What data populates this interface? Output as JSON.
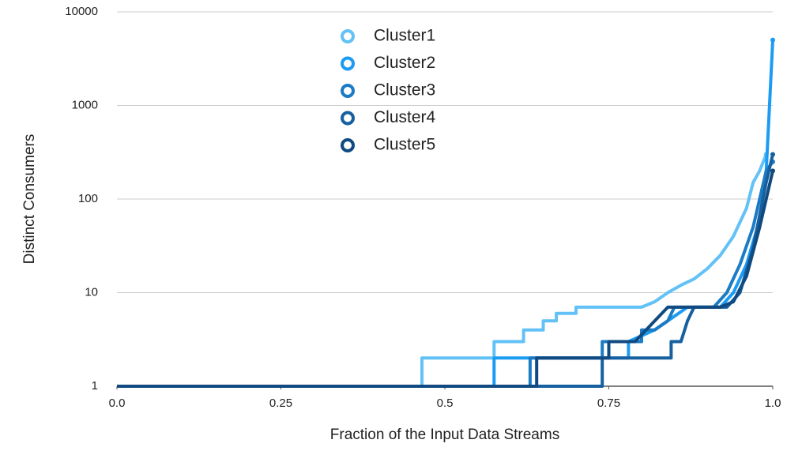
{
  "chart_data": {
    "type": "line",
    "log_y": true,
    "grid": true,
    "legend": "top",
    "x_label": "Fraction of the Input Data Streams",
    "y_label": "Distinct Consumers",
    "xlim": [
      0,
      1
    ],
    "xticks": [
      {
        "value": 0,
        "label": "0.0"
      },
      0.25,
      0.5,
      0.75,
      {
        "value": 1,
        "label": "1.0"
      }
    ],
    "ylim": [
      1,
      10000
    ],
    "yticks": [
      1,
      10,
      100,
      1000,
      10000
    ],
    "series": [
      {
        "name": "Cluster1",
        "color": "#62c1f6",
        "x": [
          0,
          0.465,
          0.465,
          0.575,
          0.575,
          0.62,
          0.62,
          0.65,
          0.65,
          0.67,
          0.67,
          0.7,
          0.7,
          0.8,
          0.82,
          0.84,
          0.86,
          0.88,
          0.9,
          0.92,
          0.94,
          0.96,
          0.97,
          0.98,
          0.99
        ],
        "values": [
          1,
          1,
          2,
          2,
          3,
          3,
          4,
          4,
          5,
          5,
          6,
          6,
          7,
          7,
          8,
          10,
          12,
          14,
          18,
          25,
          40,
          80,
          150,
          200,
          300
        ]
      },
      {
        "name": "Cluster2",
        "color": "#1b9cf2",
        "x": [
          0,
          0.575,
          0.575,
          0.78,
          0.78,
          0.82,
          0.84,
          0.87,
          0.92,
          0.94,
          0.96,
          0.98,
          0.99,
          0.995,
          1.0
        ],
        "values": [
          1,
          1,
          2,
          2,
          3,
          4,
          5,
          7,
          7,
          10,
          20,
          60,
          200,
          1000,
          5000
        ]
      },
      {
        "name": "Cluster3",
        "color": "#1b7bc4",
        "x": [
          0,
          0.63,
          0.63,
          0.74,
          0.74,
          0.8,
          0.8,
          0.82,
          0.84,
          0.85,
          0.91,
          0.93,
          0.95,
          0.97,
          0.99,
          1.0
        ],
        "values": [
          1,
          1,
          2,
          2,
          3,
          3,
          4,
          4,
          5,
          7,
          7,
          10,
          20,
          50,
          200,
          250
        ]
      },
      {
        "name": "Cluster4",
        "color": "#17609f",
        "x": [
          0,
          0.74,
          0.74,
          0.845,
          0.845,
          0.86,
          0.87,
          0.88,
          0.93,
          0.95,
          0.97,
          0.99,
          1.0
        ],
        "values": [
          1,
          1,
          2,
          2,
          3,
          3,
          5,
          7,
          7,
          10,
          30,
          150,
          300
        ]
      },
      {
        "name": "Cluster5",
        "color": "#104a80",
        "x": [
          0,
          0.64,
          0.64,
          0.75,
          0.75,
          0.79,
          0.82,
          0.84,
          0.9,
          0.92,
          0.94,
          0.96,
          0.98,
          1.0
        ],
        "values": [
          1,
          1,
          2,
          2,
          3,
          3,
          5,
          7,
          7,
          7,
          8,
          15,
          50,
          200
        ]
      }
    ]
  }
}
